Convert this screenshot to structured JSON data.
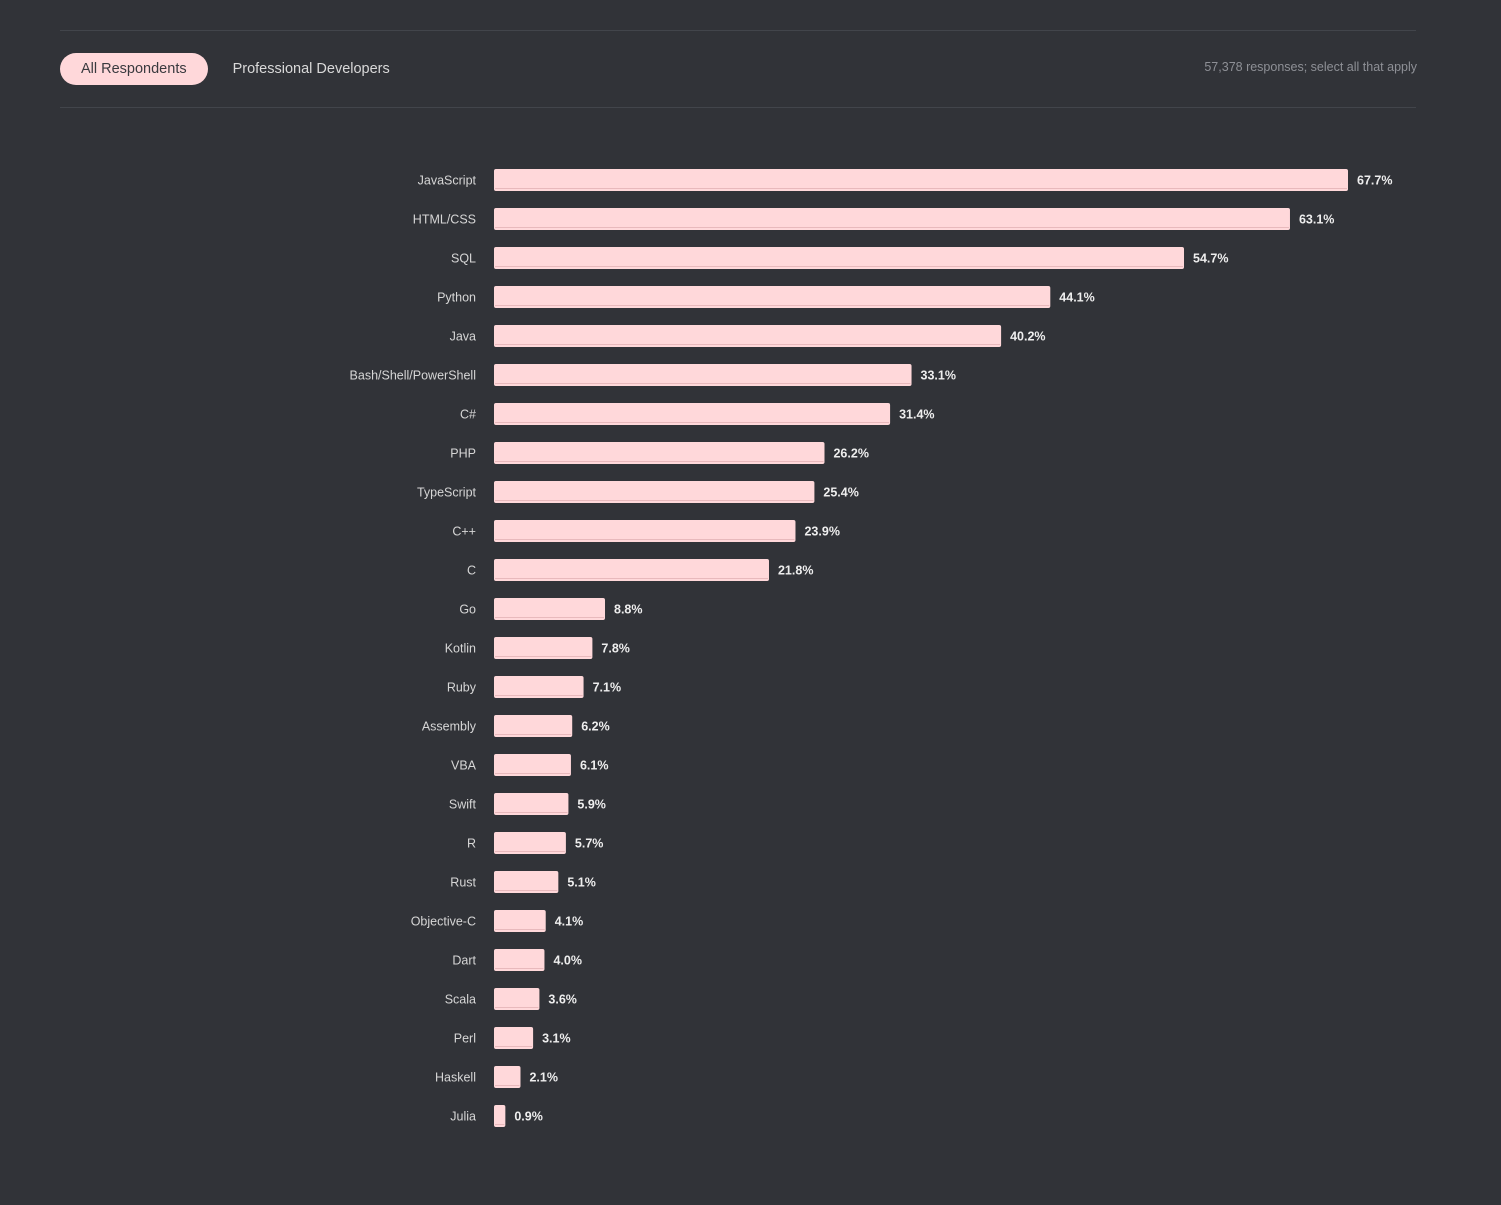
{
  "tabs": [
    {
      "label": "All Respondents",
      "active": true
    },
    {
      "label": "Professional Developers",
      "active": false
    }
  ],
  "responses_note": "57,378 responses; select all that apply",
  "colors": {
    "background": "#313338",
    "bar": "#ffd8da",
    "bar_shadow": "#e8b9bc",
    "active_tab": "#ffd8da"
  },
  "chart_data": {
    "type": "bar",
    "orientation": "horizontal",
    "unit": "%",
    "xlim": [
      0,
      67.7
    ],
    "grid": false,
    "categories": [
      "JavaScript",
      "HTML/CSS",
      "SQL",
      "Python",
      "Java",
      "Bash/Shell/PowerShell",
      "C#",
      "PHP",
      "TypeScript",
      "C++",
      "C",
      "Go",
      "Kotlin",
      "Ruby",
      "Assembly",
      "VBA",
      "Swift",
      "R",
      "Rust",
      "Objective-C",
      "Dart",
      "Scala",
      "Perl",
      "Haskell",
      "Julia"
    ],
    "values": [
      67.7,
      63.1,
      54.7,
      44.1,
      40.2,
      33.1,
      31.4,
      26.2,
      25.4,
      23.9,
      21.8,
      8.8,
      7.8,
      7.1,
      6.2,
      6.1,
      5.9,
      5.7,
      5.1,
      4.1,
      4.0,
      3.6,
      3.1,
      2.1,
      0.9
    ],
    "value_labels": [
      "67.7%",
      "63.1%",
      "54.7%",
      "44.1%",
      "40.2%",
      "33.1%",
      "31.4%",
      "26.2%",
      "25.4%",
      "23.9%",
      "21.8%",
      "8.8%",
      "7.8%",
      "7.1%",
      "6.2%",
      "6.1%",
      "5.9%",
      "5.7%",
      "5.1%",
      "4.1%",
      "4.0%",
      "3.6%",
      "3.1%",
      "2.1%",
      "0.9%"
    ]
  }
}
